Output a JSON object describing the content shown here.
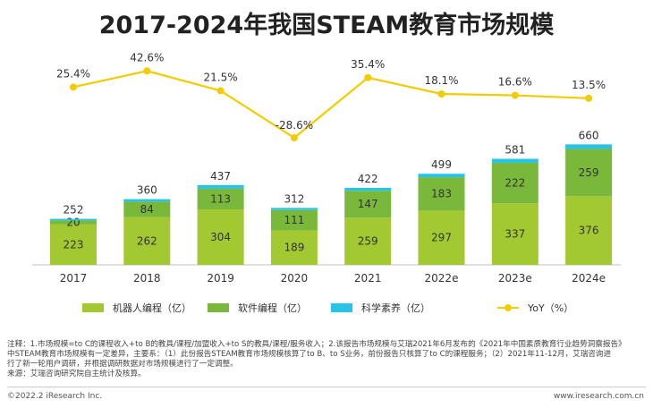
{
  "chart_data": {
    "type": "bar",
    "title": "2017-2024年我国STEAM教育市场规模",
    "categories": [
      "2017",
      "2018",
      "2019",
      "2020",
      "2021",
      "2022e",
      "2023e",
      "2024e"
    ],
    "series": [
      {
        "name": "机器人编程（亿）",
        "values": [
          223,
          262,
          304,
          189,
          259,
          297,
          337,
          376
        ],
        "color": "#a2c932"
      },
      {
        "name": "软件编程（亿）",
        "values": [
          20,
          84,
          113,
          111,
          147,
          183,
          222,
          259
        ],
        "color": "#7ab83c"
      },
      {
        "name": "科学素养（亿）",
        "values": [
          9,
          14,
          20,
          12,
          16,
          19,
          22,
          25
        ],
        "color": "#28c4e8"
      }
    ],
    "totals": [
      252,
      360,
      437,
      312,
      422,
      499,
      581,
      660
    ],
    "yoy": {
      "name": "YoY（%）",
      "values": [
        25.4,
        42.6,
        21.5,
        -28.6,
        35.4,
        18.1,
        16.6,
        13.5
      ],
      "labels": [
        "25.4%",
        "42.6%",
        "21.5%",
        "-28.6%",
        "35.4%",
        "18.1%",
        "16.6%",
        "13.5%"
      ],
      "color": "#f2cc00"
    },
    "stacked": true
  },
  "notes": {
    "line1": "注释：1.市场规模=to C的课程收入+to B的教具/课程/加盟收入+to S的教具/课程/服务收入；2.该报告市场规模与艾瑞2021年6月发布的《2021年中国素质教育行业趋势洞察报告》",
    "line2": "中STEAM教育市场规模有一定差异，主要系：（1）此份报告STEAM教育市场规模核算了to B、to S业务，前份报告只核算了to C的课程服务；（2）2021年11-12月，艾瑞咨询进",
    "line3": "行了新一轮用户调研，并根据调研数据对市场规模进行了一定调整。",
    "line4": "来源：艾瑞咨询研究院自主统计及核算。"
  },
  "footer": {
    "copyright": "©2022.2 iResearch Inc.",
    "website": "www.iresearch.com.cn"
  }
}
